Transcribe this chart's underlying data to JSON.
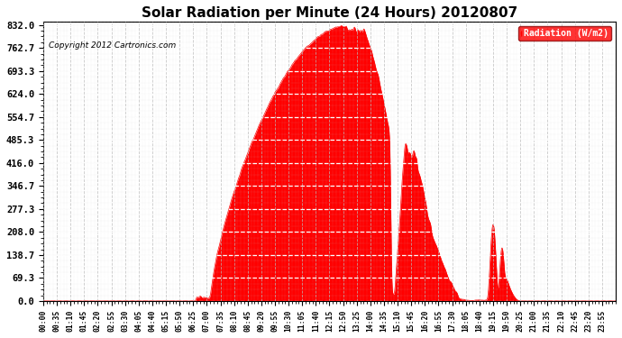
{
  "title": "Solar Radiation per Minute (24 Hours) 20120807",
  "copyright": "Copyright 2012 Cartronics.com",
  "legend_label": "Radiation (W/m2)",
  "fill_color": "#FF0000",
  "line_color": "#FF0000",
  "background_color": "#FFFFFF",
  "plot_bg_color": "#FFFFFF",
  "grid_color": "#BBBBBB",
  "dashed_line_color": "#FF0000",
  "ytick_labels": [
    "0.0",
    "69.3",
    "138.7",
    "208.0",
    "277.3",
    "346.7",
    "416.0",
    "485.3",
    "554.7",
    "624.0",
    "693.3",
    "762.7",
    "832.0"
  ],
  "ytick_values": [
    0.0,
    69.3,
    138.7,
    208.0,
    277.3,
    346.7,
    416.0,
    485.3,
    554.7,
    624.0,
    693.3,
    762.7,
    832.0
  ],
  "ymax": 832.0,
  "ymin": 0.0,
  "xtick_labels": [
    "00:00",
    "00:35",
    "01:10",
    "01:45",
    "02:20",
    "02:55",
    "03:30",
    "04:05",
    "04:40",
    "05:15",
    "05:50",
    "06:25",
    "07:00",
    "07:35",
    "08:10",
    "08:45",
    "09:20",
    "09:55",
    "10:30",
    "11:05",
    "11:40",
    "12:15",
    "12:50",
    "13:25",
    "14:00",
    "14:35",
    "15:10",
    "15:45",
    "16:20",
    "16:55",
    "17:30",
    "18:05",
    "18:40",
    "19:15",
    "19:50",
    "20:25",
    "21:00",
    "21:35",
    "22:10",
    "22:45",
    "23:20",
    "23:55"
  ]
}
